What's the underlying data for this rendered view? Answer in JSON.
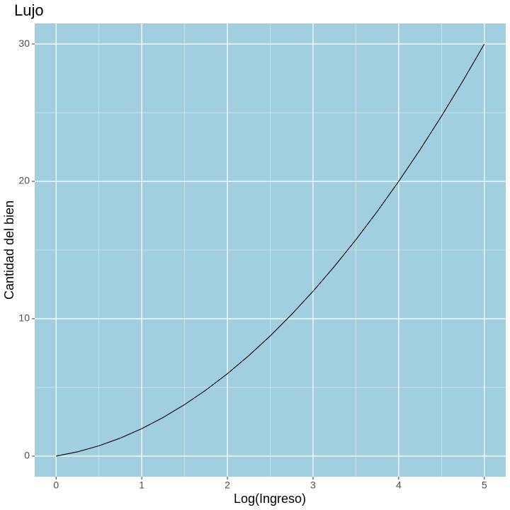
{
  "chart_data": {
    "type": "line",
    "title": "Lujo",
    "x_label": "Log(Ingreso)",
    "y_label": "Cantidad del bien",
    "x": [
      0,
      0.25,
      0.5,
      0.75,
      1,
      1.25,
      1.5,
      1.75,
      2,
      2.25,
      2.5,
      2.75,
      3,
      3.25,
      3.5,
      3.75,
      4,
      4.25,
      4.5,
      4.75,
      5
    ],
    "series": [
      {
        "color": "#000000",
        "values": [
          0,
          0.3125,
          0.75,
          1.3125,
          2,
          2.8125,
          3.75,
          4.8125,
          6,
          7.3125,
          8.75,
          10.3125,
          12,
          13.8125,
          15.75,
          17.8125,
          20,
          22.3125,
          24.75,
          27.3125,
          30
        ]
      }
    ],
    "xlim": [
      -0.25,
      5.25
    ],
    "xticks": [
      0,
      1,
      2,
      3,
      4,
      5
    ],
    "ylim": [
      -1.5,
      31.5
    ],
    "yticks": [
      0,
      10,
      20,
      30
    ],
    "grid": true,
    "panel_color": "#a2cfdf"
  }
}
